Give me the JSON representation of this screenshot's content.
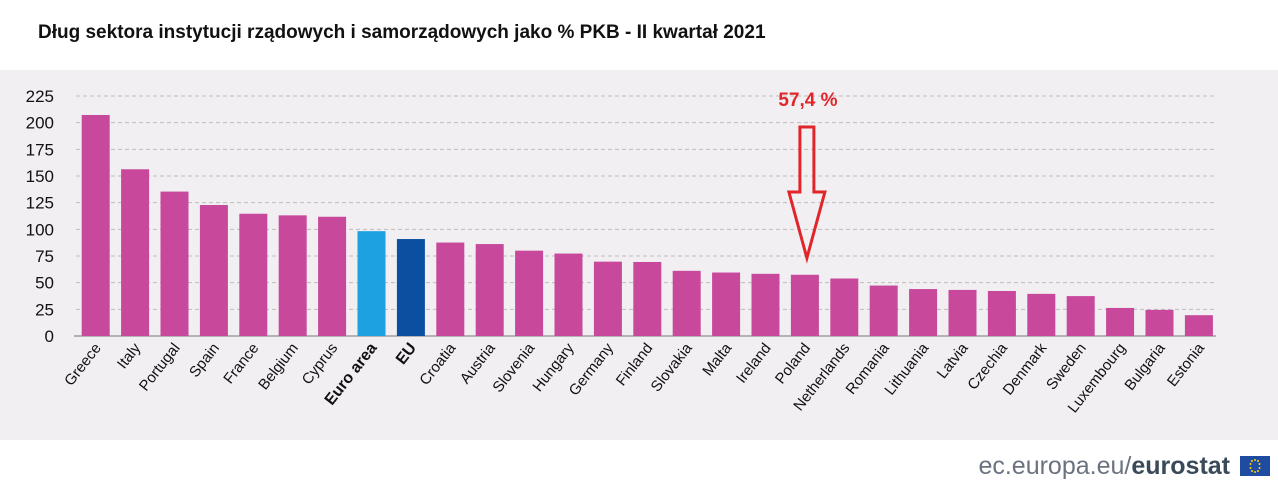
{
  "title": "Dług sektora instytucji rządowych i samorządowych jako % PKB - II kwartał 2021",
  "footer": {
    "site": "ec.europa.eu/",
    "brand": "eurostat"
  },
  "colors": {
    "default": "#c8489b",
    "euro_area": "#1da1e0",
    "eu": "#0a4fa0",
    "annotation": "#e0262b",
    "grid": "#bdbdbd"
  },
  "icons": {
    "flag": "eu-flag-icon",
    "arrow": "down-arrow-icon"
  },
  "chart_data": {
    "type": "bar",
    "title": "Dług sektora instytucji rządowych i samorządowych jako % PKB - II kwartał 2021",
    "xlabel": "",
    "ylabel": "",
    "ylim": [
      0,
      225
    ],
    "yticks": [
      0,
      25,
      50,
      75,
      100,
      125,
      150,
      175,
      200,
      225
    ],
    "grid": true,
    "categories": [
      "Greece",
      "Italy",
      "Portugal",
      "Spain",
      "France",
      "Belgium",
      "Cyprus",
      "Euro area",
      "EU",
      "Croatia",
      "Austria",
      "Slovenia",
      "Hungary",
      "Germany",
      "Finland",
      "Slovakia",
      "Malta",
      "Ireland",
      "Poland",
      "Netherlands",
      "Romania",
      "Lithuania",
      "Latvia",
      "Czechia",
      "Denmark",
      "Sweden",
      "Luxembourg",
      "Bulgaria",
      "Estonia"
    ],
    "values": [
      207.2,
      156.3,
      135.4,
      122.8,
      114.6,
      113.1,
      111.8,
      98.3,
      90.9,
      87.6,
      86.2,
      80.0,
      77.3,
      69.7,
      69.4,
      61.1,
      59.5,
      58.3,
      57.4,
      53.9,
      47.3,
      44.0,
      43.2,
      42.2,
      39.5,
      37.4,
      26.3,
      24.5,
      19.5
    ],
    "bold_categories": [
      "Euro area",
      "EU"
    ],
    "annotation": {
      "text": "57,4 %",
      "target": "Poland"
    }
  }
}
